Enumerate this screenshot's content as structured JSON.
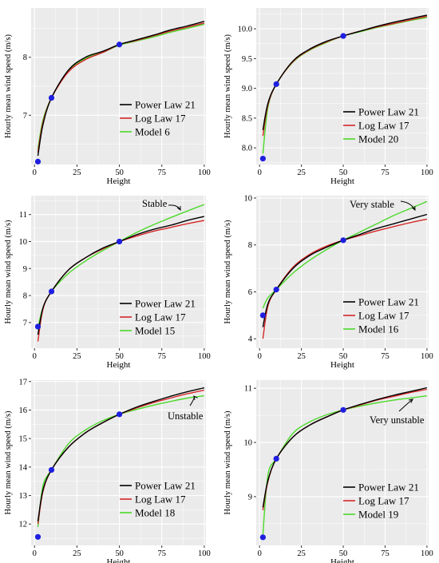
{
  "chart_data": [
    {
      "type": "line",
      "xlabel": "Height",
      "ylabel": "Hourly mean wind speed (m/s)",
      "xlim": [
        -2,
        101
      ],
      "ylim": [
        6.15,
        8.85
      ],
      "x_ticks": [
        0,
        25,
        50,
        75,
        100
      ],
      "x_tick_labels": [
        "0",
        "25",
        "50",
        "75",
        "100"
      ],
      "y_ticks": [
        7,
        8
      ],
      "y_tick_labels": [
        "7",
        "8"
      ],
      "grid": true,
      "legend_position": "bottom-right",
      "series": [
        {
          "name": "Power Law 21",
          "color": "#000000",
          "x": [
            2,
            5,
            10,
            20,
            30,
            40,
            50,
            60,
            70,
            80,
            90,
            100
          ],
          "y": [
            6.3,
            6.84,
            7.3,
            7.78,
            8.0,
            8.1,
            8.22,
            8.3,
            8.38,
            8.47,
            8.54,
            8.62
          ]
        },
        {
          "name": "Log Law 17",
          "color": "#d62728",
          "x": [
            2,
            5,
            10,
            20,
            30,
            40,
            50,
            60,
            70,
            80,
            90,
            100
          ],
          "y": [
            6.36,
            6.88,
            7.3,
            7.75,
            7.96,
            8.08,
            8.22,
            8.29,
            8.37,
            8.45,
            8.52,
            8.59
          ]
        },
        {
          "name": "Model 6",
          "color": "#4cd92a",
          "x": [
            2,
            5,
            10,
            20,
            30,
            40,
            50,
            60,
            70,
            80,
            90,
            100
          ],
          "y": [
            6.42,
            6.92,
            7.3,
            7.77,
            7.98,
            8.08,
            8.21,
            8.28,
            8.35,
            8.43,
            8.5,
            8.57
          ]
        }
      ],
      "observed_points": {
        "x": [
          2,
          10,
          50
        ],
        "y": [
          6.2,
          7.3,
          8.22
        ]
      },
      "annotation": ""
    },
    {
      "type": "line",
      "xlabel": "Height",
      "ylabel": "Hourly mean wind speed (m/s)",
      "xlim": [
        -2,
        101
      ],
      "ylim": [
        7.72,
        10.35
      ],
      "x_ticks": [
        0,
        25,
        50,
        75,
        100
      ],
      "x_tick_labels": [
        "0",
        "25",
        "50",
        "75",
        "100"
      ],
      "y_ticks": [
        8.0,
        8.5,
        9.0,
        9.5,
        10.0
      ],
      "y_tick_labels": [
        "8.0",
        "8.5",
        "9.0",
        "9.5",
        "10.0"
      ],
      "grid": true,
      "legend_position": "bottom-right",
      "series": [
        {
          "name": "Power Law 21",
          "color": "#000000",
          "x": [
            2,
            5,
            10,
            20,
            30,
            40,
            50,
            60,
            70,
            80,
            90,
            100
          ],
          "y": [
            8.3,
            8.75,
            9.07,
            9.46,
            9.66,
            9.79,
            9.88,
            9.96,
            10.04,
            10.11,
            10.17,
            10.23
          ]
        },
        {
          "name": "Log Law 17",
          "color": "#d62728",
          "x": [
            2,
            5,
            10,
            20,
            30,
            40,
            50,
            60,
            70,
            80,
            90,
            100
          ],
          "y": [
            8.2,
            8.72,
            9.07,
            9.45,
            9.65,
            9.78,
            9.88,
            9.96,
            10.03,
            10.09,
            10.15,
            10.21
          ]
        },
        {
          "name": "Model 20",
          "color": "#4cd92a",
          "x": [
            2,
            5,
            10,
            20,
            30,
            40,
            50,
            60,
            70,
            80,
            90,
            100
          ],
          "y": [
            7.9,
            8.68,
            9.07,
            9.44,
            9.64,
            9.77,
            9.88,
            9.95,
            10.02,
            10.08,
            10.14,
            10.19
          ]
        }
      ],
      "observed_points": {
        "x": [
          2,
          10,
          50
        ],
        "y": [
          7.82,
          9.07,
          9.88
        ]
      },
      "annotation": ""
    },
    {
      "type": "line",
      "xlabel": "Height",
      "ylabel": "Hourly mean wind speed (m/s)",
      "xlim": [
        -2,
        101
      ],
      "ylim": [
        6.05,
        11.7
      ],
      "x_ticks": [
        0,
        25,
        50,
        75,
        100
      ],
      "x_tick_labels": [
        "0",
        "25",
        "50",
        "75",
        "100"
      ],
      "y_ticks": [
        7,
        8,
        9,
        10,
        11
      ],
      "y_tick_labels": [
        "7",
        "8",
        "9",
        "10",
        "11"
      ],
      "grid": true,
      "legend_position": "bottom-right",
      "series": [
        {
          "name": "Power Law 21",
          "color": "#000000",
          "x": [
            2,
            5,
            10,
            20,
            30,
            40,
            50,
            60,
            70,
            80,
            90,
            100
          ],
          "y": [
            6.55,
            7.55,
            8.15,
            8.95,
            9.4,
            9.75,
            10.0,
            10.25,
            10.45,
            10.6,
            10.78,
            10.93
          ]
        },
        {
          "name": "Log Law 17",
          "color": "#d62728",
          "x": [
            2,
            5,
            10,
            20,
            30,
            40,
            50,
            60,
            70,
            80,
            90,
            100
          ],
          "y": [
            6.3,
            7.5,
            8.15,
            8.95,
            9.4,
            9.72,
            10.0,
            10.2,
            10.38,
            10.52,
            10.66,
            10.78
          ]
        },
        {
          "name": "Model 15",
          "color": "#4cd92a",
          "x": [
            2,
            5,
            10,
            20,
            30,
            40,
            50,
            60,
            70,
            80,
            90,
            100
          ],
          "y": [
            6.8,
            7.55,
            8.15,
            8.82,
            9.28,
            9.66,
            10.0,
            10.33,
            10.62,
            10.88,
            11.13,
            11.37
          ]
        }
      ],
      "observed_points": {
        "x": [
          2,
          10,
          50
        ],
        "y": [
          6.85,
          8.15,
          10.0
        ]
      },
      "annotation": "Stable"
    },
    {
      "type": "line",
      "xlabel": "Height",
      "ylabel": "Hourly mean wind speed (m/s)",
      "xlim": [
        -2,
        101
      ],
      "ylim": [
        3.6,
        10.1
      ],
      "x_ticks": [
        0,
        25,
        50,
        75,
        100
      ],
      "x_tick_labels": [
        "0",
        "25",
        "50",
        "75",
        "100"
      ],
      "y_ticks": [
        4,
        6,
        8,
        10
      ],
      "y_tick_labels": [
        "4",
        "6",
        "8",
        "10"
      ],
      "grid": true,
      "legend_position": "bottom-right",
      "series": [
        {
          "name": "Power Law 21",
          "color": "#000000",
          "x": [
            2,
            5,
            10,
            20,
            30,
            40,
            50,
            60,
            70,
            80,
            90,
            100
          ],
          "y": [
            4.5,
            5.5,
            6.1,
            7.0,
            7.55,
            7.9,
            8.2,
            8.45,
            8.7,
            8.9,
            9.1,
            9.3
          ]
        },
        {
          "name": "Log Law 17",
          "color": "#d62728",
          "x": [
            2,
            5,
            10,
            20,
            30,
            40,
            50,
            60,
            70,
            80,
            90,
            100
          ],
          "y": [
            4.0,
            5.4,
            6.1,
            7.05,
            7.6,
            7.95,
            8.2,
            8.4,
            8.6,
            8.78,
            8.95,
            9.1
          ]
        },
        {
          "name": "Model 16",
          "color": "#4cd92a",
          "x": [
            2,
            5,
            10,
            20,
            30,
            40,
            50,
            60,
            70,
            80,
            90,
            100
          ],
          "y": [
            5.3,
            5.75,
            6.1,
            6.8,
            7.35,
            7.8,
            8.2,
            8.55,
            8.9,
            9.25,
            9.55,
            9.85
          ]
        }
      ],
      "observed_points": {
        "x": [
          2,
          10,
          50
        ],
        "y": [
          5.0,
          6.1,
          8.2
        ]
      },
      "annotation": "Very stable"
    },
    {
      "type": "line",
      "xlabel": "Height",
      "ylabel": "Hourly mean wind speed (m/s)",
      "xlim": [
        -2,
        101
      ],
      "ylim": [
        11.25,
        17.05
      ],
      "x_ticks": [
        0,
        25,
        50,
        75,
        100
      ],
      "x_tick_labels": [
        "0",
        "25",
        "50",
        "75",
        "100"
      ],
      "y_ticks": [
        12,
        13,
        14,
        15,
        16,
        17
      ],
      "y_tick_labels": [
        "12",
        "13",
        "14",
        "15",
        "16",
        "17"
      ],
      "grid": true,
      "legend_position": "bottom-right",
      "series": [
        {
          "name": "Power Law 21",
          "color": "#000000",
          "x": [
            2,
            5,
            10,
            20,
            30,
            40,
            50,
            60,
            70,
            80,
            90,
            100
          ],
          "y": [
            12.1,
            13.2,
            13.9,
            14.7,
            15.2,
            15.55,
            15.85,
            16.1,
            16.3,
            16.48,
            16.64,
            16.78
          ]
        },
        {
          "name": "Log Law 17",
          "color": "#d62728",
          "x": [
            2,
            5,
            10,
            20,
            30,
            40,
            50,
            60,
            70,
            80,
            90,
            100
          ],
          "y": [
            12.0,
            13.15,
            13.9,
            14.7,
            15.2,
            15.55,
            15.85,
            16.07,
            16.26,
            16.42,
            16.57,
            16.7
          ]
        },
        {
          "name": "Model 18",
          "color": "#4cd92a",
          "x": [
            2,
            5,
            10,
            20,
            30,
            40,
            50,
            60,
            70,
            80,
            90,
            100
          ],
          "y": [
            11.9,
            13.35,
            13.9,
            14.82,
            15.3,
            15.62,
            15.85,
            16.02,
            16.17,
            16.3,
            16.42,
            16.5
          ]
        }
      ],
      "observed_points": {
        "x": [
          2,
          10,
          50
        ],
        "y": [
          11.55,
          13.9,
          15.85
        ]
      },
      "annotation": "Unstable"
    },
    {
      "type": "line",
      "xlabel": "Height",
      "ylabel": "Hourly mean wind speed (m/s)",
      "xlim": [
        -2,
        101
      ],
      "ylim": [
        8.1,
        11.15
      ],
      "x_ticks": [
        0,
        25,
        50,
        75,
        100
      ],
      "x_tick_labels": [
        "0",
        "25",
        "50",
        "75",
        "100"
      ],
      "y_ticks": [
        9,
        10,
        11
      ],
      "y_tick_labels": [
        "9",
        "10",
        "11"
      ],
      "grid": true,
      "legend_position": "bottom-right",
      "series": [
        {
          "name": "Power Law 21",
          "color": "#000000",
          "x": [
            2,
            5,
            10,
            20,
            30,
            40,
            50,
            60,
            70,
            80,
            90,
            100
          ],
          "y": [
            8.8,
            9.3,
            9.7,
            10.1,
            10.32,
            10.47,
            10.6,
            10.7,
            10.79,
            10.87,
            10.94,
            11.01
          ]
        },
        {
          "name": "Log Law 17",
          "color": "#d62728",
          "x": [
            2,
            5,
            10,
            20,
            30,
            40,
            50,
            60,
            70,
            80,
            90,
            100
          ],
          "y": [
            8.75,
            9.28,
            9.7,
            10.1,
            10.32,
            10.47,
            10.6,
            10.69,
            10.78,
            10.85,
            10.92,
            10.98
          ]
        },
        {
          "name": "Model 19",
          "color": "#4cd92a",
          "x": [
            2,
            5,
            10,
            20,
            30,
            40,
            50,
            60,
            70,
            80,
            90,
            100
          ],
          "y": [
            8.3,
            9.4,
            9.7,
            10.17,
            10.38,
            10.51,
            10.6,
            10.67,
            10.73,
            10.78,
            10.82,
            10.86
          ]
        }
      ],
      "observed_points": {
        "x": [
          2,
          10,
          50
        ],
        "y": [
          8.25,
          9.7,
          10.6
        ]
      },
      "annotation": "Very unstable"
    }
  ]
}
